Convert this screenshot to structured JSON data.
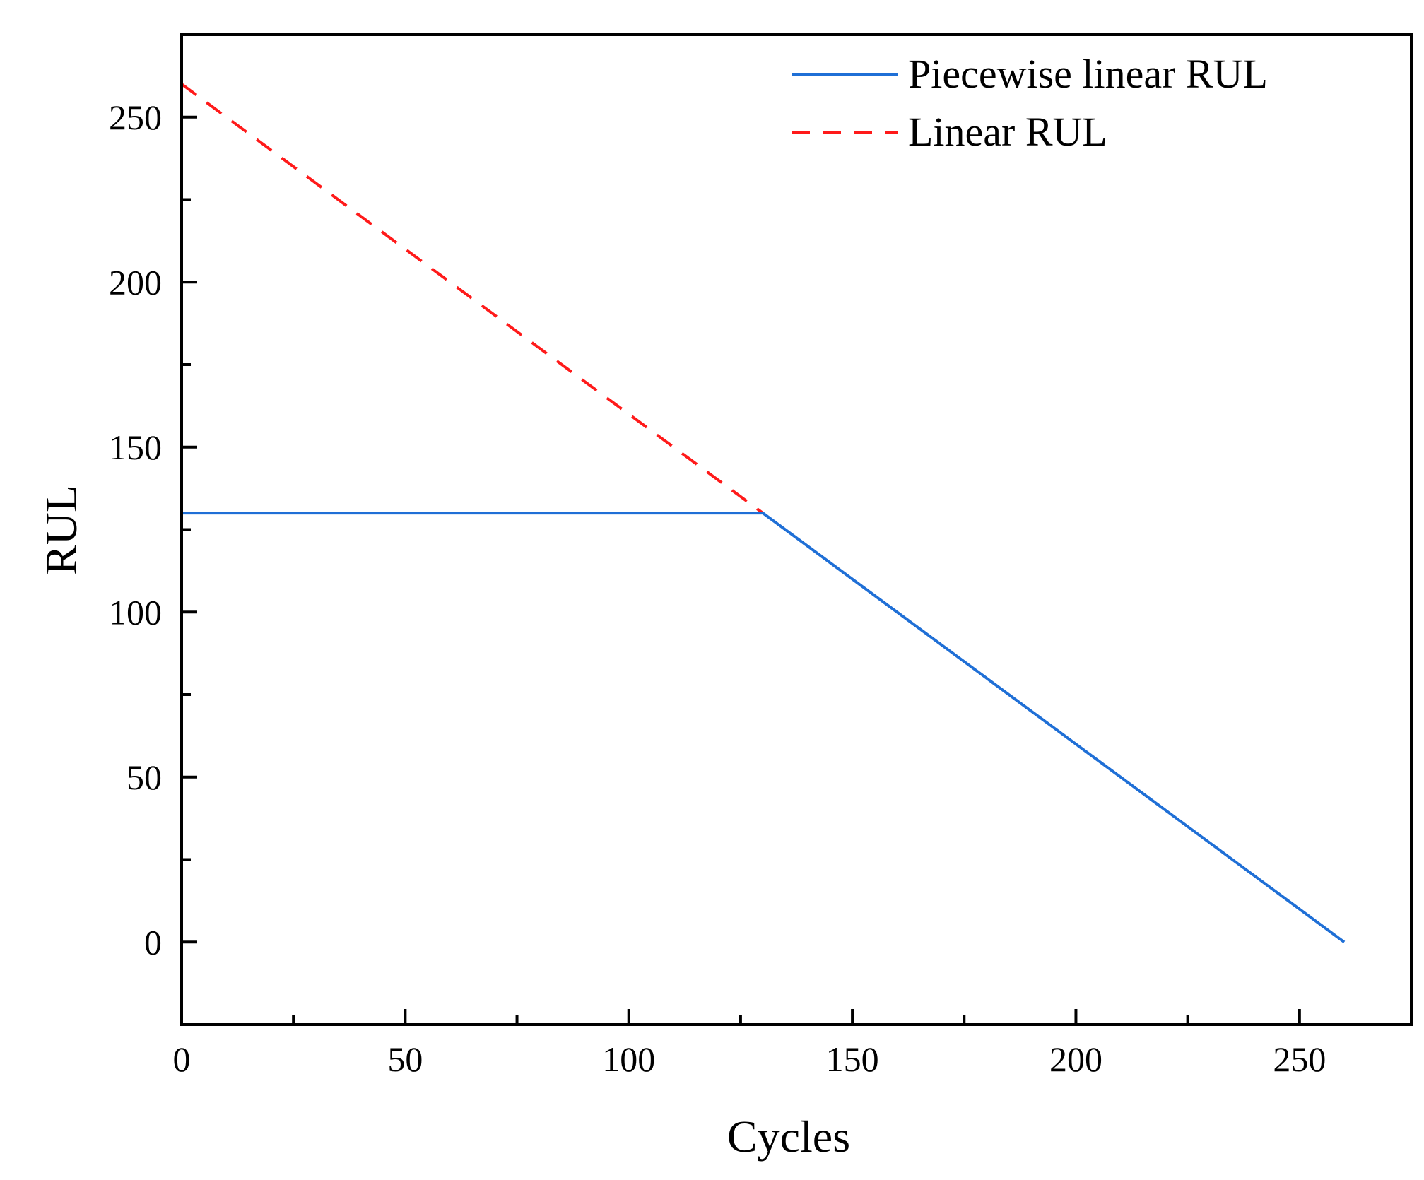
{
  "chart_data": {
    "type": "line",
    "title": "",
    "xlabel": "Cycles",
    "ylabel": "RUL",
    "xlim": [
      0,
      275
    ],
    "ylim": [
      -25,
      275
    ],
    "xticks": [
      0,
      50,
      100,
      150,
      200,
      250
    ],
    "yticks": [
      0,
      50,
      100,
      150,
      200,
      250
    ],
    "x_minor_step": 25,
    "y_minor_step": 25,
    "grid": false,
    "legend_position": "top-right",
    "series": [
      {
        "name": "Piecewise linear RUL",
        "style": "solid",
        "color": "#1f6fd6",
        "x": [
          0,
          130,
          260
        ],
        "y": [
          130,
          130,
          0
        ]
      },
      {
        "name": "Linear RUL",
        "style": "dashed",
        "color": "#ff1a1a",
        "x": [
          0,
          130
        ],
        "y": [
          260,
          130
        ]
      }
    ]
  }
}
